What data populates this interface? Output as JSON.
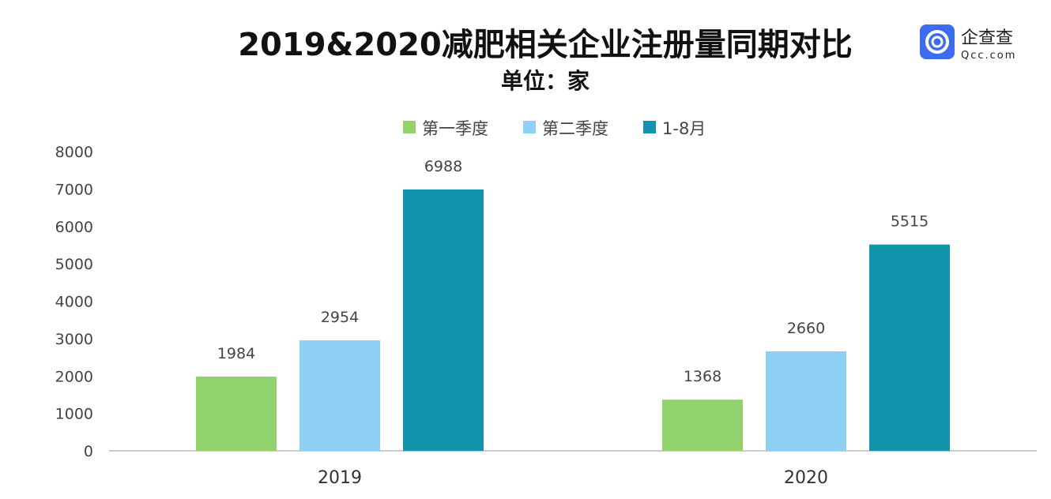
{
  "chart_data": {
    "type": "bar",
    "title": "2019&2020减肥相关企业注册量同期对比",
    "subtitle": "单位：家",
    "categories": [
      "2019",
      "2020"
    ],
    "series": [
      {
        "name": "第一季度",
        "values": [
          1984,
          1368
        ],
        "color": "#92d36e"
      },
      {
        "name": "第二季度",
        "values": [
          2954,
          2660
        ],
        "color": "#8fd0f5"
      },
      {
        "name": "1-8月",
        "values": [
          6988,
          5515
        ],
        "color": "#1394ad"
      }
    ],
    "ylim": [
      0,
      8000
    ],
    "yticks": [
      0,
      1000,
      2000,
      3000,
      4000,
      5000,
      6000,
      7000,
      8000
    ],
    "legend": "top-center",
    "grid": false
  },
  "logo": {
    "name": "企查查",
    "domain": "Qcc.com",
    "color": "#3d6cf0"
  }
}
